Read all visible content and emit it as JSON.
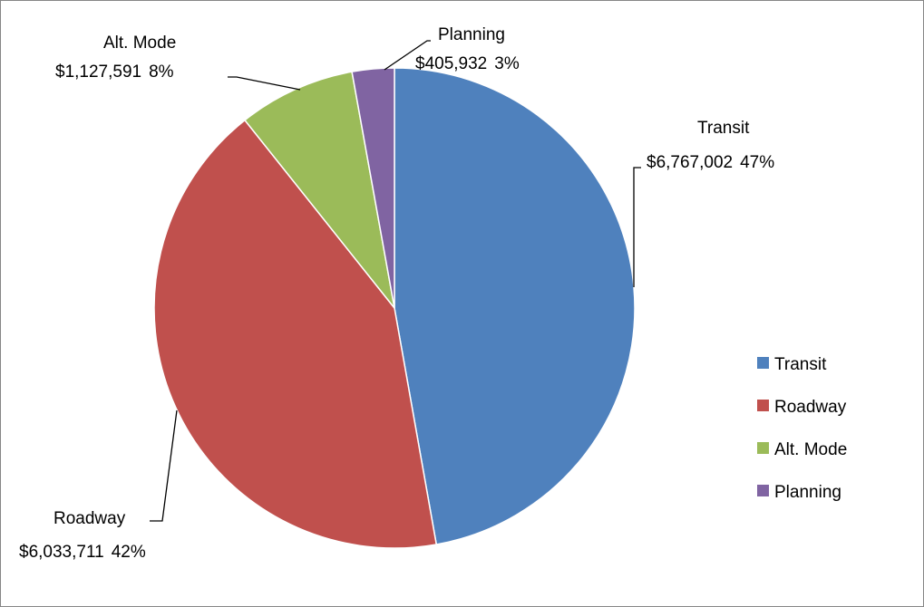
{
  "chart_data": {
    "type": "pie",
    "title": "",
    "slices": [
      {
        "label": "Transit",
        "value": 6767002,
        "value_text": "$6,767,002",
        "percent_text": "47%",
        "color": "#4F81BD"
      },
      {
        "label": "Roadway",
        "value": 6033711,
        "value_text": "$6,033,711",
        "percent_text": "42%",
        "color": "#C0504D"
      },
      {
        "label": "Alt. Mode",
        "value": 1127591,
        "value_text": "$1,127,591",
        "percent_text": "8%",
        "color": "#9BBB59"
      },
      {
        "label": "Planning",
        "value": 405932,
        "value_text": "$405,932",
        "percent_text": "3%",
        "color": "#8064A2"
      }
    ],
    "legend": {
      "position": "right",
      "entries": [
        "Transit",
        "Roadway",
        "Alt. Mode",
        "Planning"
      ]
    },
    "start_angle": "12 o'clock, clockwise"
  }
}
